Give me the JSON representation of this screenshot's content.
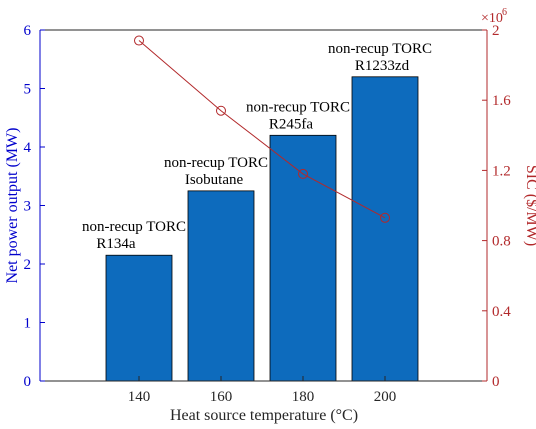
{
  "chart_data": {
    "type": "bar",
    "categories": [
      "140",
      "160",
      "180",
      "200"
    ],
    "xlabel": "Heat source temperature (°C)",
    "ylabel": "Net power output (MW)",
    "y2label": "SIC ($/MW)",
    "y2_exponent_label": "×10",
    "y2_exponent_power": "6",
    "ylim": [
      0,
      6
    ],
    "y2lim": [
      0,
      2
    ],
    "yticks": [
      "0",
      "1",
      "2",
      "3",
      "4",
      "5",
      "6"
    ],
    "y2ticks": [
      "0",
      "0.4",
      "0.8",
      "1.2",
      "1.6",
      "2"
    ],
    "y2tick_values": [
      0,
      0.4,
      0.8,
      1.2,
      1.6,
      2.0
    ],
    "series": [
      {
        "axis": "left",
        "type": "bar",
        "values": [
          2.15,
          3.25,
          4.2,
          5.2
        ],
        "labels": [
          [
            "non-recup TORC",
            "R134a"
          ],
          [
            "non-recup TORC",
            "Isobutane"
          ],
          [
            "non-recup TORC",
            "R245fa"
          ],
          [
            "non-recup TORC",
            "R1233zd"
          ]
        ],
        "color": "#0d6bbd"
      },
      {
        "axis": "right",
        "type": "line",
        "marker": "circle",
        "values": [
          1.94,
          1.54,
          1.18,
          0.93
        ],
        "color": "#b2292b"
      }
    ],
    "colors": {
      "left_axis": "#0000cc",
      "right_axis": "#b2292b",
      "bar_edge": "#000000"
    }
  }
}
